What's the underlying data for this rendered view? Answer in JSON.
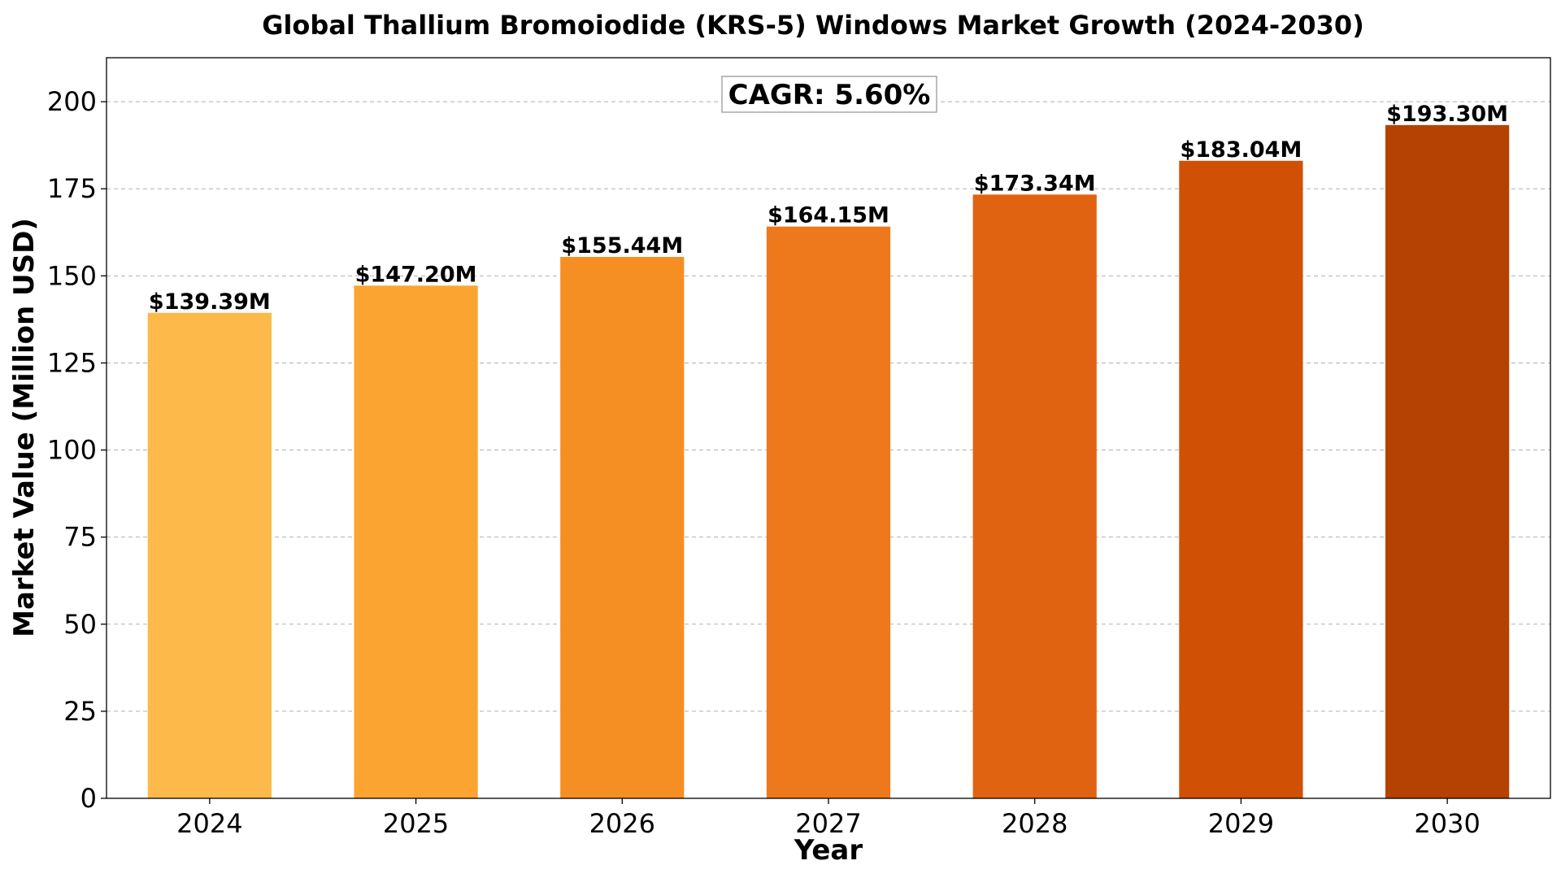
{
  "chart_data": {
    "type": "bar",
    "title": "Global Thallium Bromoiodide (KRS-5) Windows Market Growth (2024-2030)",
    "xlabel": "Year",
    "ylabel": "Market Value (Million USD)",
    "categories": [
      "2024",
      "2025",
      "2026",
      "2027",
      "2028",
      "2029",
      "2030"
    ],
    "values": [
      139.39,
      147.2,
      155.44,
      164.15,
      173.34,
      183.04,
      193.3
    ],
    "data_labels": [
      "$139.39M",
      "$147.20M",
      "$155.44M",
      "$164.15M",
      "$173.34M",
      "$183.04M",
      "$193.30M"
    ],
    "colors": [
      "#FDB94A",
      "#FCA432",
      "#F68F23",
      "#EE781C",
      "#E06312",
      "#D05005",
      "#B54203"
    ],
    "ylim": [
      0,
      212.63
    ],
    "yticks": [
      0,
      25,
      50,
      75,
      100,
      125,
      150,
      175,
      200
    ],
    "grid": "y-dashed",
    "annotation": "CAGR: 5.60%"
  }
}
